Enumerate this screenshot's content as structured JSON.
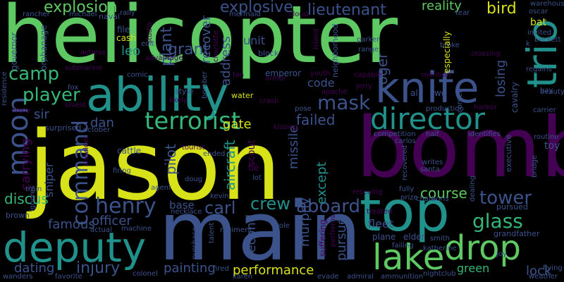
{
  "palette": {
    "background": "#000000",
    "yellow": "#d8e219",
    "green": "#5ec962",
    "teal": "#21918c",
    "blue": "#3b528b",
    "purple": "#440154",
    "violet": "#482475",
    "mint": "#35b779"
  },
  "words": {
    "helicopter": "helicopter",
    "jason": "jason",
    "bomb": "bomb",
    "main": "main",
    "top": "top",
    "ability": "ability",
    "knife": "knife",
    "deputy": "deputy",
    "drop": "drop",
    "lake": "lake",
    "director": "director",
    "terrorist": "terrorist",
    "moon": "moon",
    "trio": "trio",
    "command": "command",
    "henry": "henry",
    "aboard": "aboard",
    "crew": "crew",
    "carl": "carl",
    "tower": "tower",
    "glass": "glass",
    "mask": "mask",
    "camp": "camp",
    "player": "player",
    "explosion": "explosion",
    "explosive": "explosive",
    "lieutenant": "lieutenant",
    "bird": "bird",
    "reality": "reality",
    "grant": "grant",
    "plant": "plant",
    "leo": "leo",
    "injury": "injury",
    "performance": "performance",
    "painting": "painting",
    "famous": "famous",
    "officer": "officer",
    "dating": "dating",
    "discus": "discus",
    "course": "course",
    "failed": "failed",
    "gate": "gate",
    "pilot": "pilot",
    "aircraft": "aircraft",
    "missile": "missile",
    "except": "except",
    "pursue": "pursue",
    "murphy": "murphy",
    "second": "second",
    "roger": "roger",
    "losing": "losing",
    "address": "address",
    "recover": "recover",
    "unit": "unit",
    "code": "code",
    "sir": "sir",
    "dan": "dan",
    "carrying": "carrying",
    "sniper": "sniper",
    "lock": "lock",
    "green": "green",
    "base": "base",
    "scout": "scout",
    "fleet": "fleet",
    "file": "file",
    "cash": "cash",
    "rancher": "rancher",
    "michael": "michael",
    "naval": "naval",
    "rally": "rally",
    "mermaid": "mermaid",
    "cloud": "cloud",
    "tear": "tear",
    "oscar": "oscar",
    "warehouse": "warehouse",
    "invited": "invited",
    "beckett": "beckett",
    "governor": "governor",
    "orphanage": "orphanage",
    "residence": "residence",
    "submarine": "submarine",
    "actress": "actress",
    "comic": "comic",
    "emperor": "emperor",
    "fan": "fan",
    "block": "block",
    "parker": "parker",
    "range": "range",
    "broke": "broke",
    "especially": "especially",
    "mention": "mention",
    "capable": "capable",
    "neighborhood": "neighborhood",
    "youth": "youth",
    "crossing": "crossing",
    "regains": "regains",
    "beauty": "beauty",
    "carrier": "carrier",
    "routine": "routine",
    "cavalry": "cavalry",
    "fox": "fox",
    "shield": "shield",
    "enjoy": "enjoy",
    "style": "style",
    "bomber": "bomber",
    "water": "water",
    "crash": "crash",
    "pose": "pose",
    "apache": "apache",
    "jerry": "jerry",
    "production": "production",
    "harbor": "harbor",
    "corner": "corner",
    "kissing": "kissing",
    "surprised": "surprised",
    "october": "october",
    "cattle": "cattle",
    "competition": "competition",
    "half": "half",
    "identifies": "identifies",
    "executive": "executive",
    "carlos": "carlos",
    "shoulder": "shoulder",
    "tourist": "tourist",
    "ended": "ended",
    "tie": "tie",
    "doug": "doug",
    "lot": "lot",
    "firing": "firing",
    "agent": "agent",
    "santa": "santa",
    "writes": "writes",
    "recovered": "recovered",
    "bridge": "bridge",
    "train": "train",
    "ignores": "ignores",
    "kevin": "kevin",
    "rescuing": "rescuing",
    "fully": "fully",
    "prize": "prize",
    "chain": "chain",
    "boris": "boris",
    "dealing": "dealing",
    "pursued": "pursued",
    "brown": "brown",
    "necklace": "necklace",
    "talent": "talent",
    "treated": "treated",
    "actual": "actual",
    "machine": "machine",
    "regiment": "regiment",
    "role": "role",
    "plane": "plane",
    "elder": "elder",
    "smith": "smith",
    "failing": "failing",
    "katherine": "katherine",
    "grandfather": "grandfather",
    "joy": "joy",
    "flying": "flying",
    "weather": "weather",
    "wanders": "wanders",
    "favorite": "favorite",
    "colonel": "colonel",
    "fired": "fired",
    "karen": "karen",
    "evade": "evade",
    "admiral": "admiral",
    "ammunition": "ammunition",
    "nightclub": "nightclub",
    "suffering": "suffering",
    "performs": "performs",
    "purchase": "purchase",
    "al": "al",
    "wo": "wo",
    "k": "k",
    "bat": "bat",
    "toy": "toy",
    "bay": "bay",
    "fit": "fit",
    "likely": "likely",
    "armor": "armor",
    "edit": "edit",
    "advantage": "advantage",
    "island": "island",
    "studio": "studio",
    "charlotte": "charlotte"
  }
}
